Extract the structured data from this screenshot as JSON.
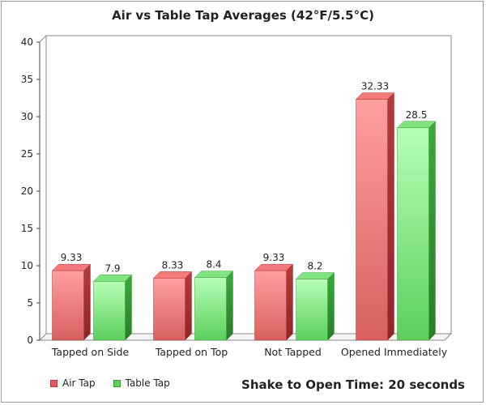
{
  "chart_data": {
    "type": "bar",
    "title": "Air vs Table Tap Averages (42°F/5.5°C)",
    "xlabel": "",
    "ylabel": "",
    "categories": [
      "Tapped on Side",
      "Tapped on Top",
      "Not Tapped",
      "Opened Immediately"
    ],
    "series": [
      {
        "name": "Air Tap",
        "values": [
          9.33,
          8.33,
          9.33,
          32.33
        ],
        "labels": [
          "9.33",
          "8.33",
          "9.33",
          "32.33"
        ],
        "color": "#e35b5b"
      },
      {
        "name": "Table Tap",
        "values": [
          7.9,
          8.4,
          8.2,
          28.5
        ],
        "labels": [
          "7.9",
          "8.4",
          "8.2",
          "28.5"
        ],
        "color": "#5fd05f"
      }
    ],
    "ylim": [
      0,
      40
    ],
    "yticks": [
      "0",
      "5",
      "10",
      "15",
      "20",
      "25",
      "30",
      "35",
      "40"
    ],
    "grid": false,
    "legend_position": "bottom-left",
    "bar_style": "3d"
  },
  "caption": "Shake to Open Time: 20 seconds"
}
